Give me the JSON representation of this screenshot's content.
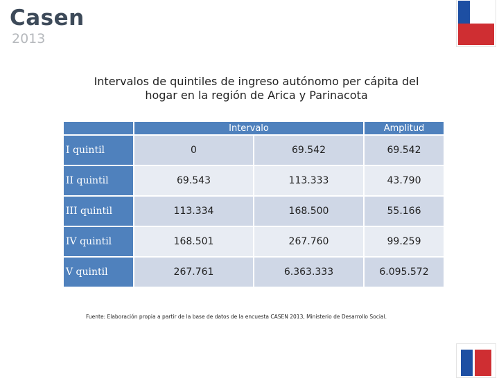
{
  "logo": {
    "word": "Casen",
    "year": "2013"
  },
  "colors": {
    "header_blue": "#4f81bd",
    "band_light": "#cfd7e6",
    "band_lighter": "#e8ecf3",
    "flag_blue": "#1d4fa3",
    "flag_red": "#cf2e32"
  },
  "title": {
    "line1": "Intervalos de quintiles de ingreso autónomo per cápita del",
    "line2": "hogar en la región de Arica y Parinacota"
  },
  "table": {
    "header": {
      "interval": "Intervalo",
      "amplitude": "Amplitud"
    },
    "rows": [
      {
        "label": "I quintil",
        "from": "0",
        "to": "69.542",
        "amplitude": "69.542"
      },
      {
        "label": "II quintil",
        "from": "69.543",
        "to": "113.333",
        "amplitude": "43.790"
      },
      {
        "label": "III quintil",
        "from": "113.334",
        "to": "168.500",
        "amplitude": "55.166"
      },
      {
        "label": "IV quintil",
        "from": "168.501",
        "to": "267.760",
        "amplitude": "99.259"
      },
      {
        "label": "V quintil",
        "from": "267.761",
        "to": "6.363.333",
        "amplitude": "6.095.572"
      }
    ]
  },
  "source": "Fuente: Elaboración propia a partir de la base de datos de la encuesta CASEN 2013, Ministerio de Desarrollo Social."
}
